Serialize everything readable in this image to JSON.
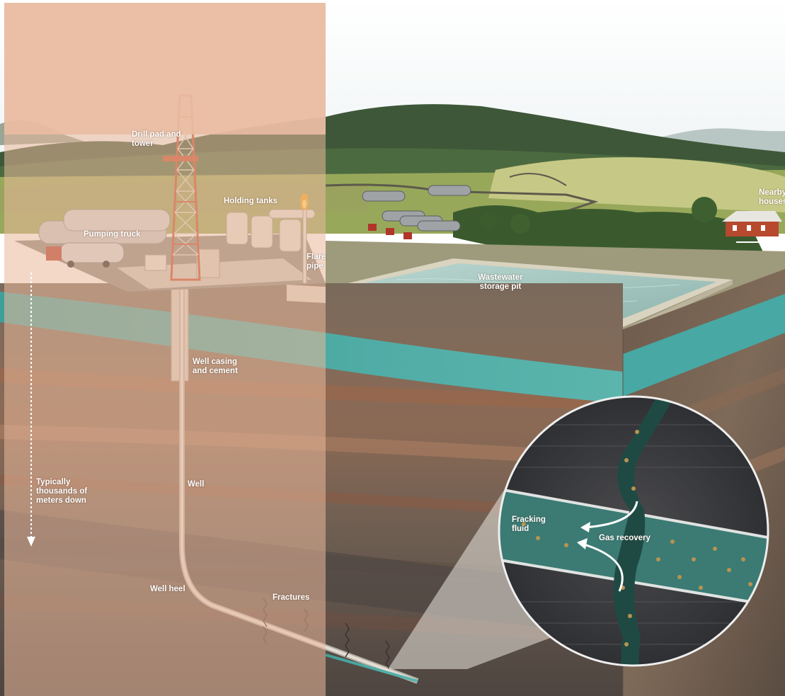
{
  "labels": {
    "drill_pad": "Drill pad and tower",
    "holding_tanks": "Holding tanks",
    "pumping_truck": "Pumping truck",
    "flare_pipe": "Flare pipe",
    "nearby_houses": "Nearby houses",
    "wastewater": "Wastewater storage pit",
    "well_casing": "Well casing and cement",
    "typically": "Typically thousands of meters down",
    "well": "Well",
    "well_heel": "Well heel",
    "fractures": "Fractures",
    "fracking_fluid": "Fracking fluid",
    "gas_recovery": "Gas recovery"
  },
  "colors": {
    "overlay": "#e9b89a",
    "aquifer": "#4fa8a3",
    "sky": "#ffffff",
    "hills": "#3f5a37",
    "grass": "#9fae5e",
    "rock": "#7d6a5b",
    "pipe": "#cfe4dc"
  }
}
